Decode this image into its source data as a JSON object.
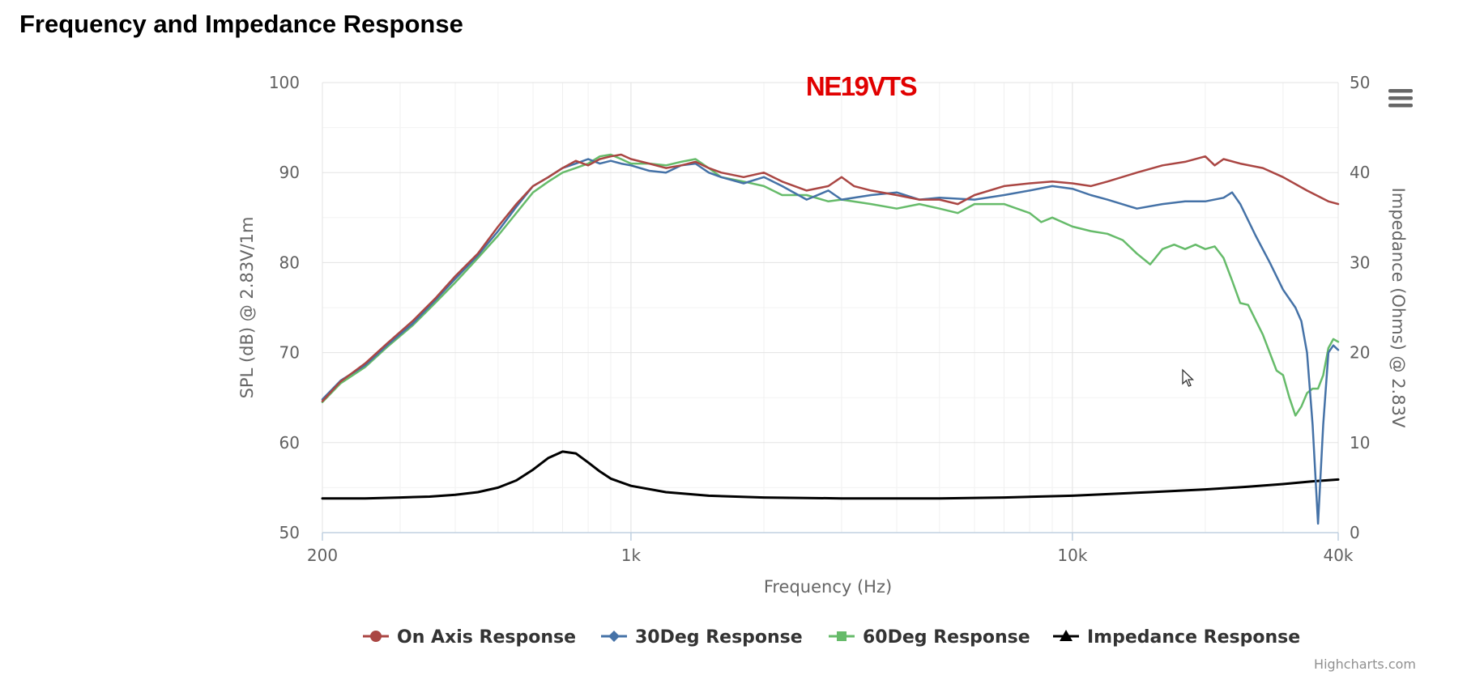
{
  "page": {
    "title": "Frequency and Impedance Response"
  },
  "chart_data": {
    "type": "line",
    "title": "NE19VTS",
    "xlabel": "Frequency (Hz)",
    "ylabel": "SPL (dB) @ 2.83V/1m",
    "y2label": "Impedance (Ohms) @ 2.83V",
    "xscale": "log",
    "xlim": [
      200,
      40000
    ],
    "ylim": [
      50,
      100
    ],
    "y2lim": [
      0,
      50
    ],
    "xticks": [
      200,
      1000,
      10000,
      40000
    ],
    "xtick_labels": [
      "200",
      "1k",
      "10k",
      "40k"
    ],
    "yticks": [
      50,
      60,
      70,
      80,
      90,
      100
    ],
    "y2ticks": [
      0,
      10,
      20,
      30,
      40,
      50
    ],
    "grid": true,
    "legend": "bottom-center",
    "credits": "Highcharts.com",
    "series": [
      {
        "name": "On Axis Response",
        "color": "#aa4643",
        "axis": "left",
        "marker": "circle",
        "points": [
          [
            200,
            64.6
          ],
          [
            220,
            66.8
          ],
          [
            250,
            68.8
          ],
          [
            280,
            71.0
          ],
          [
            320,
            73.5
          ],
          [
            360,
            76.0
          ],
          [
            400,
            78.5
          ],
          [
            450,
            81.0
          ],
          [
            500,
            84.0
          ],
          [
            550,
            86.5
          ],
          [
            600,
            88.5
          ],
          [
            650,
            89.5
          ],
          [
            700,
            90.5
          ],
          [
            750,
            91.3
          ],
          [
            800,
            90.8
          ],
          [
            850,
            91.5
          ],
          [
            900,
            91.8
          ],
          [
            950,
            92.0
          ],
          [
            1000,
            91.5
          ],
          [
            1100,
            91.0
          ],
          [
            1200,
            90.5
          ],
          [
            1300,
            90.8
          ],
          [
            1400,
            91.2
          ],
          [
            1500,
            90.5
          ],
          [
            1600,
            90.0
          ],
          [
            1800,
            89.5
          ],
          [
            2000,
            90.0
          ],
          [
            2200,
            89.0
          ],
          [
            2500,
            88.0
          ],
          [
            2800,
            88.5
          ],
          [
            3000,
            89.5
          ],
          [
            3200,
            88.5
          ],
          [
            3500,
            88.0
          ],
          [
            4000,
            87.5
          ],
          [
            4500,
            87.0
          ],
          [
            5000,
            87.0
          ],
          [
            5500,
            86.5
          ],
          [
            6000,
            87.5
          ],
          [
            7000,
            88.5
          ],
          [
            8000,
            88.8
          ],
          [
            9000,
            89.0
          ],
          [
            10000,
            88.8
          ],
          [
            11000,
            88.5
          ],
          [
            12000,
            89.0
          ],
          [
            14000,
            90.0
          ],
          [
            16000,
            90.8
          ],
          [
            18000,
            91.2
          ],
          [
            20000,
            91.8
          ],
          [
            21000,
            90.8
          ],
          [
            22000,
            91.5
          ],
          [
            24000,
            91.0
          ],
          [
            27000,
            90.5
          ],
          [
            30000,
            89.5
          ],
          [
            34000,
            88.0
          ],
          [
            38000,
            86.8
          ],
          [
            40000,
            86.5
          ]
        ]
      },
      {
        "name": "30Deg Response",
        "color": "#4572a7",
        "axis": "left",
        "marker": "diamond",
        "points": [
          [
            200,
            64.8
          ],
          [
            220,
            66.9
          ],
          [
            250,
            68.6
          ],
          [
            280,
            70.8
          ],
          [
            320,
            73.2
          ],
          [
            360,
            75.8
          ],
          [
            400,
            78.2
          ],
          [
            450,
            80.8
          ],
          [
            500,
            83.5
          ],
          [
            550,
            86.2
          ],
          [
            600,
            88.5
          ],
          [
            650,
            89.5
          ],
          [
            700,
            90.5
          ],
          [
            750,
            91.0
          ],
          [
            800,
            91.5
          ],
          [
            850,
            91.0
          ],
          [
            900,
            91.3
          ],
          [
            950,
            91.0
          ],
          [
            1000,
            90.8
          ],
          [
            1100,
            90.2
          ],
          [
            1200,
            90.0
          ],
          [
            1300,
            90.8
          ],
          [
            1400,
            91.0
          ],
          [
            1500,
            90.0
          ],
          [
            1600,
            89.5
          ],
          [
            1800,
            88.8
          ],
          [
            2000,
            89.5
          ],
          [
            2200,
            88.5
          ],
          [
            2500,
            87.0
          ],
          [
            2800,
            88.0
          ],
          [
            3000,
            87.0
          ],
          [
            3500,
            87.5
          ],
          [
            4000,
            87.8
          ],
          [
            4500,
            87.0
          ],
          [
            5000,
            87.2
          ],
          [
            6000,
            87.0
          ],
          [
            7000,
            87.5
          ],
          [
            8000,
            88.0
          ],
          [
            9000,
            88.5
          ],
          [
            10000,
            88.2
          ],
          [
            11000,
            87.5
          ],
          [
            12000,
            87.0
          ],
          [
            14000,
            86.0
          ],
          [
            16000,
            86.5
          ],
          [
            18000,
            86.8
          ],
          [
            20000,
            86.8
          ],
          [
            22000,
            87.2
          ],
          [
            23000,
            87.8
          ],
          [
            24000,
            86.5
          ],
          [
            26000,
            83.0
          ],
          [
            28000,
            80.0
          ],
          [
            30000,
            77.0
          ],
          [
            32000,
            75.0
          ],
          [
            33000,
            73.5
          ],
          [
            34000,
            70.0
          ],
          [
            35000,
            62.0
          ],
          [
            36000,
            51.0
          ],
          [
            37000,
            62.0
          ],
          [
            38000,
            70.0
          ],
          [
            39000,
            70.8
          ],
          [
            40000,
            70.3
          ]
        ]
      },
      {
        "name": "60Deg Response",
        "color": "#66bb6a",
        "axis": "left",
        "marker": "square",
        "points": [
          [
            200,
            64.5
          ],
          [
            220,
            66.6
          ],
          [
            250,
            68.4
          ],
          [
            280,
            70.6
          ],
          [
            320,
            73.0
          ],
          [
            360,
            75.5
          ],
          [
            400,
            77.8
          ],
          [
            450,
            80.5
          ],
          [
            500,
            83.0
          ],
          [
            550,
            85.5
          ],
          [
            600,
            87.8
          ],
          [
            650,
            89.0
          ],
          [
            700,
            90.0
          ],
          [
            750,
            90.5
          ],
          [
            800,
            91.0
          ],
          [
            850,
            91.8
          ],
          [
            900,
            92.0
          ],
          [
            950,
            91.5
          ],
          [
            1000,
            91.0
          ],
          [
            1100,
            91.0
          ],
          [
            1200,
            90.8
          ],
          [
            1300,
            91.2
          ],
          [
            1400,
            91.5
          ],
          [
            1500,
            90.5
          ],
          [
            1600,
            89.5
          ],
          [
            1800,
            89.0
          ],
          [
            2000,
            88.5
          ],
          [
            2200,
            87.5
          ],
          [
            2500,
            87.5
          ],
          [
            2800,
            86.8
          ],
          [
            3000,
            87.0
          ],
          [
            3500,
            86.5
          ],
          [
            4000,
            86.0
          ],
          [
            4500,
            86.5
          ],
          [
            5000,
            86.0
          ],
          [
            5500,
            85.5
          ],
          [
            6000,
            86.5
          ],
          [
            7000,
            86.5
          ],
          [
            8000,
            85.5
          ],
          [
            8500,
            84.5
          ],
          [
            9000,
            85.0
          ],
          [
            10000,
            84.0
          ],
          [
            11000,
            83.5
          ],
          [
            12000,
            83.2
          ],
          [
            13000,
            82.5
          ],
          [
            14000,
            81.0
          ],
          [
            15000,
            79.8
          ],
          [
            16000,
            81.5
          ],
          [
            17000,
            82.0
          ],
          [
            18000,
            81.5
          ],
          [
            19000,
            82.0
          ],
          [
            20000,
            81.5
          ],
          [
            21000,
            81.8
          ],
          [
            22000,
            80.5
          ],
          [
            23000,
            78.0
          ],
          [
            24000,
            75.5
          ],
          [
            25000,
            75.3
          ],
          [
            27000,
            72.0
          ],
          [
            29000,
            68.0
          ],
          [
            30000,
            67.5
          ],
          [
            31000,
            65.0
          ],
          [
            32000,
            63.0
          ],
          [
            33000,
            64.0
          ],
          [
            34000,
            65.5
          ],
          [
            35000,
            66.0
          ],
          [
            36000,
            66.0
          ],
          [
            37000,
            67.5
          ],
          [
            38000,
            70.5
          ],
          [
            39000,
            71.5
          ],
          [
            40000,
            71.2
          ]
        ]
      },
      {
        "name": "Impedance Response",
        "color": "#000000",
        "axis": "right",
        "marker": "triangle",
        "points": [
          [
            200,
            3.8
          ],
          [
            250,
            3.8
          ],
          [
            300,
            3.9
          ],
          [
            350,
            4.0
          ],
          [
            400,
            4.2
          ],
          [
            450,
            4.5
          ],
          [
            500,
            5.0
          ],
          [
            550,
            5.8
          ],
          [
            600,
            7.0
          ],
          [
            650,
            8.3
          ],
          [
            700,
            9.0
          ],
          [
            750,
            8.8
          ],
          [
            800,
            7.8
          ],
          [
            850,
            6.8
          ],
          [
            900,
            6.0
          ],
          [
            1000,
            5.2
          ],
          [
            1200,
            4.5
          ],
          [
            1500,
            4.1
          ],
          [
            2000,
            3.9
          ],
          [
            3000,
            3.8
          ],
          [
            5000,
            3.8
          ],
          [
            7000,
            3.9
          ],
          [
            10000,
            4.1
          ],
          [
            15000,
            4.5
          ],
          [
            20000,
            4.8
          ],
          [
            25000,
            5.1
          ],
          [
            30000,
            5.4
          ],
          [
            35000,
            5.7
          ],
          [
            40000,
            5.9
          ]
        ]
      }
    ]
  }
}
